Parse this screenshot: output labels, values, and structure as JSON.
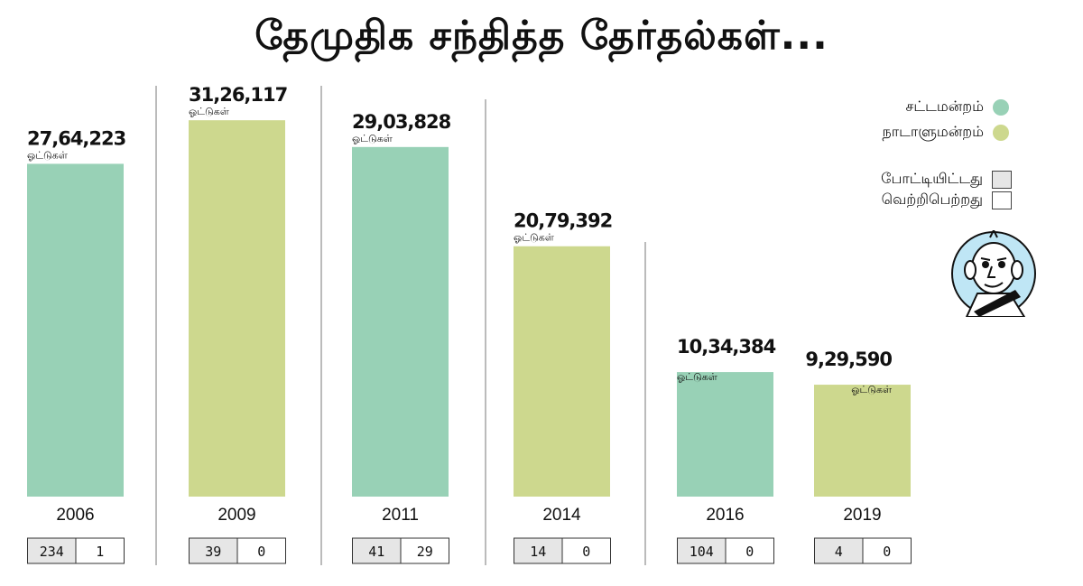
{
  "title": "தேமுதிக சந்தித்த தேர்தல்கள்...",
  "colors": {
    "assembly": "#98d1b6",
    "parliament": "#cdd88e",
    "contested_box": "#e6e6e6",
    "won_box": "#ffffff"
  },
  "legend": {
    "assembly": "சட்டமன்றம்",
    "parliament": "நாடாளுமன்றம்",
    "contested": "போட்டியிட்டது",
    "won": "வெற்றிபெற்றது"
  },
  "chart_data": {
    "type": "bar",
    "title": "தேமுதிக சந்தித்த தேர்தல்கள்...",
    "categories": [
      "2006",
      "2009",
      "2011",
      "2014",
      "2016",
      "2019"
    ],
    "values": [
      2764223,
      3126117,
      2903828,
      2079392,
      1034384,
      929590
    ],
    "value_labels": [
      "27,64,223",
      "31,26,117",
      "29,03,828",
      "20,79,392",
      "10,34,384",
      "9,29,590"
    ],
    "value_unit": "ஓட்டுகள்",
    "election_type": [
      "assembly",
      "parliament",
      "assembly",
      "parliament",
      "assembly",
      "parliament"
    ],
    "contested": [
      "234",
      "39",
      "41",
      "14",
      "104",
      "4"
    ],
    "won": [
      "1",
      "0",
      "29",
      "0",
      "0",
      "0"
    ],
    "ylim": [
      0,
      3300000
    ],
    "grid": false,
    "legend_position": "top-right"
  }
}
